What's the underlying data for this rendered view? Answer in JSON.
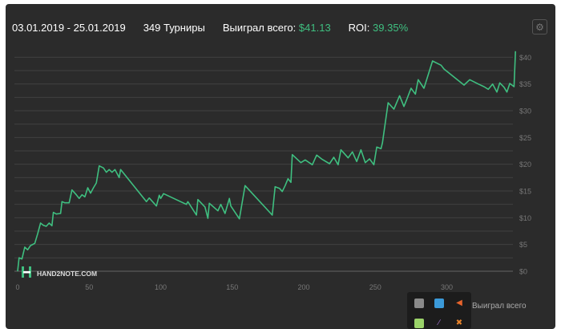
{
  "header": {
    "date_range": "03.01.2019 - 25.01.2019",
    "tournaments": "349 Турниры",
    "won_label": "Выиграл всего:",
    "won_value": "$41.13",
    "roi_label": "ROI:",
    "roi_value": "39.35%"
  },
  "watermark": "HAND2NOTE.COM",
  "legend": {
    "series_label": "Выиграл всего"
  },
  "tray": {
    "icons": [
      "monitor-icon",
      "network-icon",
      "volume-icon",
      "chat-icon",
      "feather-icon",
      "tool-icon"
    ]
  },
  "colors": {
    "line": "#3fbf80",
    "background": "#2b2b2b",
    "grid": "#444444"
  },
  "chart_data": {
    "type": "line",
    "x_ticks": [
      "0",
      "50",
      "100",
      "150",
      "200",
      "250",
      "300"
    ],
    "y_ticks": [
      "$0",
      "$5",
      "$10",
      "$15",
      "$20",
      "$25",
      "$30",
      "$35",
      "$40"
    ],
    "xlim": [
      0,
      349
    ],
    "ylim": [
      0,
      42
    ],
    "grid": true,
    "series": [
      {
        "values": [
          [
            0,
            0
          ],
          [
            1,
            2.5
          ],
          [
            3,
            2.3
          ],
          [
            5,
            4.5
          ],
          [
            7,
            4
          ],
          [
            9,
            4.8
          ],
          [
            12,
            5.2
          ],
          [
            14,
            7
          ],
          [
            16,
            9
          ],
          [
            18,
            8.6
          ],
          [
            20,
            8.4
          ],
          [
            22,
            9
          ],
          [
            24,
            8.5
          ],
          [
            25,
            11
          ],
          [
            27,
            10.7
          ],
          [
            30,
            10.8
          ],
          [
            31,
            13
          ],
          [
            33,
            12.8
          ],
          [
            36,
            12.8
          ],
          [
            38,
            15.2
          ],
          [
            41,
            14.3
          ],
          [
            43,
            13.6
          ],
          [
            45,
            14.3
          ],
          [
            47,
            13.9
          ],
          [
            49,
            15.6
          ],
          [
            51,
            14.6
          ],
          [
            53,
            15.6
          ],
          [
            55,
            16.5
          ],
          [
            57,
            19.7
          ],
          [
            60,
            19.3
          ],
          [
            62,
            18.5
          ],
          [
            64,
            19
          ],
          [
            66,
            18.5
          ],
          [
            68,
            19
          ],
          [
            71,
            17.5
          ],
          [
            72,
            19
          ],
          [
            90,
            13
          ],
          [
            92,
            13.7
          ],
          [
            97,
            12.2
          ],
          [
            99,
            14.2
          ],
          [
            100,
            13.6
          ],
          [
            102,
            14.5
          ],
          [
            118,
            12.5
          ],
          [
            119,
            13
          ],
          [
            125,
            10.5
          ],
          [
            126,
            13.4
          ],
          [
            131,
            12
          ],
          [
            133,
            9.9
          ],
          [
            134,
            12.7
          ],
          [
            140,
            11.3
          ],
          [
            142,
            12.5
          ],
          [
            145,
            10.8
          ],
          [
            148,
            13.6
          ],
          [
            149,
            12.2
          ],
          [
            155,
            9.8
          ],
          [
            159,
            16
          ],
          [
            178,
            10.5
          ],
          [
            180,
            15.8
          ],
          [
            183,
            15.5
          ],
          [
            185,
            14.9
          ],
          [
            187,
            16
          ],
          [
            189,
            17.3
          ],
          [
            191,
            16.6
          ],
          [
            192,
            21.8
          ],
          [
            198,
            20.3
          ],
          [
            201,
            20.8
          ],
          [
            206,
            19.9
          ],
          [
            209,
            21.7
          ],
          [
            213,
            20.9
          ],
          [
            218,
            20.1
          ],
          [
            221,
            21.3
          ],
          [
            224,
            19.9
          ],
          [
            226,
            22.7
          ],
          [
            231,
            21.2
          ],
          [
            234,
            22.3
          ],
          [
            237,
            20.5
          ],
          [
            240,
            22.7
          ],
          [
            243,
            20.3
          ],
          [
            246,
            21
          ],
          [
            249,
            19.9
          ],
          [
            251,
            23.2
          ],
          [
            254,
            22.9
          ],
          [
            255,
            24
          ],
          [
            259,
            31.5
          ],
          [
            263,
            30.3
          ],
          [
            267,
            32.8
          ],
          [
            270,
            30.8
          ],
          [
            272,
            32.1
          ],
          [
            275,
            34.2
          ],
          [
            278,
            33.1
          ],
          [
            280,
            35.8
          ],
          [
            284,
            34.2
          ],
          [
            290,
            39.3
          ],
          [
            296,
            38.5
          ],
          [
            298,
            37.8
          ],
          [
            312,
            34.8
          ],
          [
            316,
            35.8
          ],
          [
            322,
            35
          ],
          [
            326,
            34.5
          ],
          [
            329,
            34
          ],
          [
            332,
            35
          ],
          [
            335,
            33.5
          ],
          [
            337,
            35.2
          ],
          [
            340,
            34.4
          ],
          [
            342,
            33.5
          ],
          [
            344,
            35.1
          ],
          [
            347,
            34.5
          ],
          [
            348,
            41.13
          ]
        ]
      }
    ]
  }
}
